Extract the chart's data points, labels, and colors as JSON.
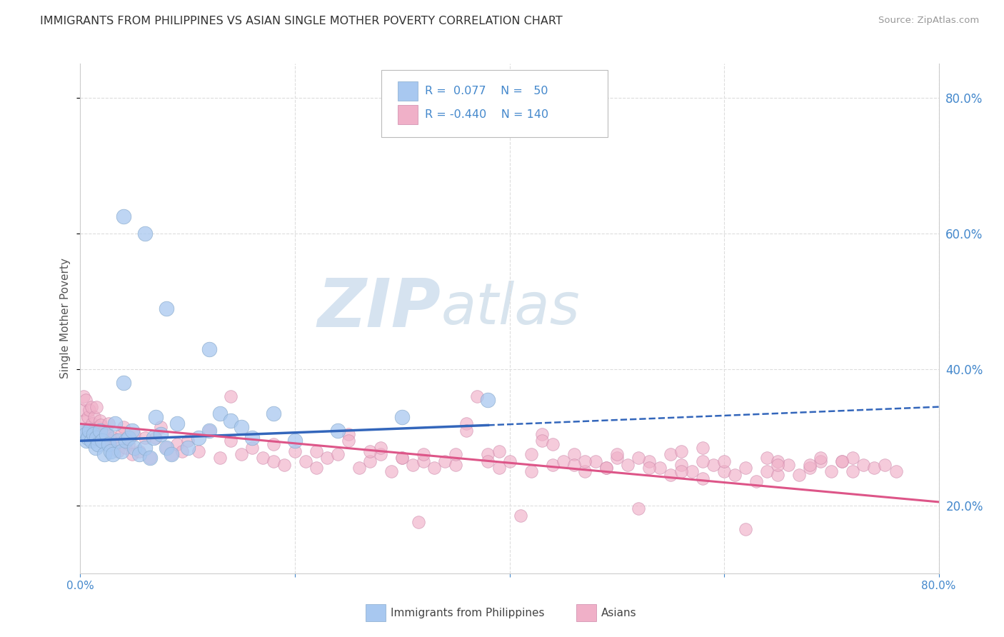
{
  "title": "IMMIGRANTS FROM PHILIPPINES VS ASIAN SINGLE MOTHER POVERTY CORRELATION CHART",
  "source": "Source: ZipAtlas.com",
  "ylabel": "Single Mother Poverty",
  "right_yticks": [
    0.2,
    0.4,
    0.6,
    0.8
  ],
  "title_color": "#333333",
  "source_color": "#999999",
  "axis_label_color": "#555555",
  "tick_color": "#4488cc",
  "grid_color": "#dddddd",
  "watermark_zip": "ZIP",
  "watermark_atlas": "atlas",
  "watermark_color": "#ccdaeb",
  "blue_color": "#a8c8f0",
  "blue_edge": "#88aacc",
  "pink_color": "#f0b0c8",
  "pink_edge": "#cc88aa",
  "blue_line_color": "#3366bb",
  "pink_line_color": "#dd5588",
  "blue_scatter": [
    [
      0.003,
      0.31
    ],
    [
      0.005,
      0.305
    ],
    [
      0.006,
      0.295
    ],
    [
      0.007,
      0.3
    ],
    [
      0.008,
      0.31
    ],
    [
      0.01,
      0.295
    ],
    [
      0.012,
      0.305
    ],
    [
      0.014,
      0.285
    ],
    [
      0.015,
      0.3
    ],
    [
      0.016,
      0.29
    ],
    [
      0.018,
      0.31
    ],
    [
      0.02,
      0.295
    ],
    [
      0.022,
      0.275
    ],
    [
      0.024,
      0.305
    ],
    [
      0.026,
      0.29
    ],
    [
      0.028,
      0.28
    ],
    [
      0.03,
      0.275
    ],
    [
      0.032,
      0.32
    ],
    [
      0.035,
      0.295
    ],
    [
      0.038,
      0.28
    ],
    [
      0.04,
      0.38
    ],
    [
      0.042,
      0.295
    ],
    [
      0.045,
      0.3
    ],
    [
      0.048,
      0.31
    ],
    [
      0.05,
      0.285
    ],
    [
      0.055,
      0.275
    ],
    [
      0.06,
      0.285
    ],
    [
      0.065,
      0.27
    ],
    [
      0.068,
      0.3
    ],
    [
      0.07,
      0.33
    ],
    [
      0.075,
      0.305
    ],
    [
      0.08,
      0.285
    ],
    [
      0.085,
      0.275
    ],
    [
      0.09,
      0.32
    ],
    [
      0.1,
      0.285
    ],
    [
      0.11,
      0.3
    ],
    [
      0.12,
      0.31
    ],
    [
      0.13,
      0.335
    ],
    [
      0.14,
      0.325
    ],
    [
      0.15,
      0.315
    ],
    [
      0.16,
      0.3
    ],
    [
      0.04,
      0.625
    ],
    [
      0.06,
      0.6
    ],
    [
      0.08,
      0.49
    ],
    [
      0.12,
      0.43
    ],
    [
      0.18,
      0.335
    ],
    [
      0.2,
      0.295
    ],
    [
      0.24,
      0.31
    ],
    [
      0.3,
      0.33
    ],
    [
      0.38,
      0.355
    ]
  ],
  "pink_scatter": [
    [
      0.002,
      0.34
    ],
    [
      0.003,
      0.36
    ],
    [
      0.004,
      0.325
    ],
    [
      0.005,
      0.355
    ],
    [
      0.006,
      0.31
    ],
    [
      0.007,
      0.33
    ],
    [
      0.008,
      0.34
    ],
    [
      0.009,
      0.315
    ],
    [
      0.01,
      0.345
    ],
    [
      0.011,
      0.32
    ],
    [
      0.012,
      0.31
    ],
    [
      0.013,
      0.33
    ],
    [
      0.014,
      0.3
    ],
    [
      0.015,
      0.345
    ],
    [
      0.016,
      0.315
    ],
    [
      0.017,
      0.305
    ],
    [
      0.018,
      0.325
    ],
    [
      0.019,
      0.318
    ],
    [
      0.02,
      0.295
    ],
    [
      0.022,
      0.31
    ],
    [
      0.024,
      0.305
    ],
    [
      0.026,
      0.32
    ],
    [
      0.028,
      0.295
    ],
    [
      0.03,
      0.3
    ],
    [
      0.032,
      0.29
    ],
    [
      0.035,
      0.28
    ],
    [
      0.038,
      0.305
    ],
    [
      0.04,
      0.315
    ],
    [
      0.042,
      0.285
    ],
    [
      0.045,
      0.29
    ],
    [
      0.048,
      0.275
    ],
    [
      0.05,
      0.305
    ],
    [
      0.055,
      0.28
    ],
    [
      0.06,
      0.3
    ],
    [
      0.065,
      0.27
    ],
    [
      0.07,
      0.3
    ],
    [
      0.075,
      0.315
    ],
    [
      0.08,
      0.285
    ],
    [
      0.085,
      0.275
    ],
    [
      0.09,
      0.29
    ],
    [
      0.095,
      0.28
    ],
    [
      0.1,
      0.295
    ],
    [
      0.11,
      0.28
    ],
    [
      0.12,
      0.31
    ],
    [
      0.13,
      0.27
    ],
    [
      0.14,
      0.36
    ],
    [
      0.15,
      0.275
    ],
    [
      0.16,
      0.285
    ],
    [
      0.17,
      0.27
    ],
    [
      0.18,
      0.265
    ],
    [
      0.19,
      0.26
    ],
    [
      0.2,
      0.28
    ],
    [
      0.21,
      0.265
    ],
    [
      0.22,
      0.255
    ],
    [
      0.23,
      0.27
    ],
    [
      0.24,
      0.275
    ],
    [
      0.25,
      0.305
    ],
    [
      0.26,
      0.255
    ],
    [
      0.27,
      0.265
    ],
    [
      0.28,
      0.275
    ],
    [
      0.29,
      0.25
    ],
    [
      0.3,
      0.27
    ],
    [
      0.31,
      0.26
    ],
    [
      0.315,
      0.175
    ],
    [
      0.32,
      0.265
    ],
    [
      0.33,
      0.255
    ],
    [
      0.34,
      0.265
    ],
    [
      0.35,
      0.26
    ],
    [
      0.36,
      0.32
    ],
    [
      0.37,
      0.36
    ],
    [
      0.38,
      0.275
    ],
    [
      0.39,
      0.255
    ],
    [
      0.4,
      0.265
    ],
    [
      0.41,
      0.185
    ],
    [
      0.42,
      0.25
    ],
    [
      0.43,
      0.305
    ],
    [
      0.44,
      0.26
    ],
    [
      0.45,
      0.265
    ],
    [
      0.46,
      0.275
    ],
    [
      0.47,
      0.25
    ],
    [
      0.48,
      0.265
    ],
    [
      0.49,
      0.255
    ],
    [
      0.5,
      0.27
    ],
    [
      0.51,
      0.26
    ],
    [
      0.52,
      0.195
    ],
    [
      0.53,
      0.265
    ],
    [
      0.54,
      0.255
    ],
    [
      0.55,
      0.245
    ],
    [
      0.56,
      0.26
    ],
    [
      0.57,
      0.25
    ],
    [
      0.58,
      0.24
    ],
    [
      0.59,
      0.26
    ],
    [
      0.6,
      0.25
    ],
    [
      0.61,
      0.245
    ],
    [
      0.62,
      0.165
    ],
    [
      0.63,
      0.235
    ],
    [
      0.64,
      0.25
    ],
    [
      0.65,
      0.245
    ],
    [
      0.66,
      0.26
    ],
    [
      0.67,
      0.245
    ],
    [
      0.68,
      0.255
    ],
    [
      0.69,
      0.265
    ],
    [
      0.7,
      0.25
    ],
    [
      0.71,
      0.265
    ],
    [
      0.72,
      0.25
    ],
    [
      0.73,
      0.26
    ],
    [
      0.74,
      0.255
    ],
    [
      0.75,
      0.26
    ],
    [
      0.76,
      0.25
    ],
    [
      0.32,
      0.275
    ],
    [
      0.25,
      0.295
    ],
    [
      0.43,
      0.295
    ],
    [
      0.64,
      0.27
    ],
    [
      0.52,
      0.27
    ],
    [
      0.58,
      0.265
    ],
    [
      0.36,
      0.31
    ],
    [
      0.28,
      0.285
    ],
    [
      0.18,
      0.29
    ],
    [
      0.44,
      0.29
    ],
    [
      0.39,
      0.28
    ],
    [
      0.58,
      0.285
    ],
    [
      0.69,
      0.27
    ],
    [
      0.72,
      0.27
    ],
    [
      0.55,
      0.275
    ],
    [
      0.47,
      0.265
    ],
    [
      0.6,
      0.265
    ],
    [
      0.65,
      0.265
    ],
    [
      0.68,
      0.26
    ],
    [
      0.71,
      0.265
    ],
    [
      0.65,
      0.26
    ],
    [
      0.5,
      0.275
    ],
    [
      0.42,
      0.275
    ],
    [
      0.35,
      0.275
    ],
    [
      0.27,
      0.28
    ],
    [
      0.56,
      0.25
    ],
    [
      0.49,
      0.255
    ],
    [
      0.62,
      0.255
    ],
    [
      0.53,
      0.255
    ],
    [
      0.46,
      0.26
    ],
    [
      0.38,
      0.265
    ],
    [
      0.3,
      0.27
    ],
    [
      0.22,
      0.28
    ],
    [
      0.14,
      0.295
    ],
    [
      0.56,
      0.28
    ]
  ],
  "blue_line_solid": {
    "x0": 0.0,
    "x1": 0.38,
    "y0": 0.295,
    "y1": 0.318
  },
  "blue_line_dashed": {
    "x0": 0.38,
    "x1": 0.8,
    "y0": 0.318,
    "y1": 0.345
  },
  "pink_line": {
    "x0": 0.0,
    "x1": 0.8,
    "y0": 0.32,
    "y1": 0.205
  },
  "xlim": [
    0.0,
    0.8
  ],
  "ylim": [
    0.1,
    0.85
  ],
  "yticks": [
    0.2,
    0.4,
    0.6,
    0.8
  ],
  "fig_bg": "#ffffff",
  "plot_bg": "#ffffff"
}
